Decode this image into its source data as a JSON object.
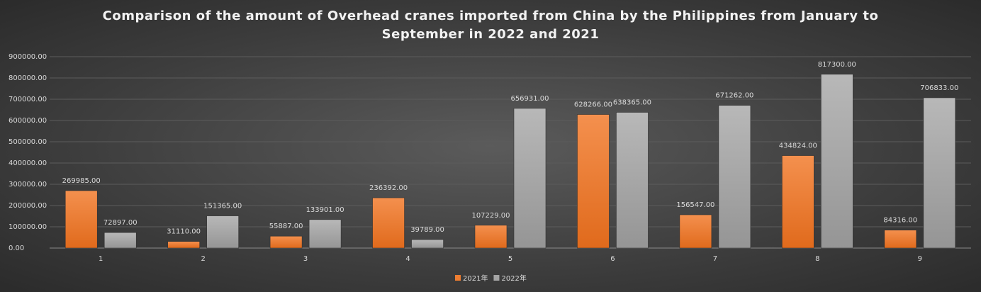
{
  "chart_data": {
    "type": "bar",
    "title": "Comparison of the amount of Overhead cranes imported from China by the Philippines from January to September in 2022 and 2021",
    "categories": [
      "1",
      "2",
      "3",
      "4",
      "5",
      "6",
      "7",
      "8",
      "9"
    ],
    "series": [
      {
        "name": "2021年",
        "color": "#ed7d31",
        "values": [
          269985,
          31110,
          55887,
          236392,
          107229,
          628266,
          156547,
          434824,
          84316
        ],
        "value_labels": [
          "269985.00",
          "31110.00",
          "55887.00",
          "236392.00",
          "107229.00",
          "628266.00",
          "156547.00",
          "434824.00",
          "84316.00"
        ]
      },
      {
        "name": "2022年",
        "color": "#a5a5a5",
        "values": [
          72897,
          151365,
          133901,
          39789,
          656931,
          638365,
          671262,
          817300,
          706833
        ],
        "value_labels": [
          "72897.00",
          "151365.00",
          "133901.00",
          "39789.00",
          "656931.00",
          "638365.00",
          "671262.00",
          "817300.00",
          "706833.00"
        ]
      }
    ],
    "ylim": [
      0,
      900000
    ],
    "yticks": [
      {
        "value": 0,
        "label": "0.00"
      },
      {
        "value": 100000,
        "label": "100000.00"
      },
      {
        "value": 200000,
        "label": "200000.00"
      },
      {
        "value": 300000,
        "label": "300000.00"
      },
      {
        "value": 400000,
        "label": "400000.00"
      },
      {
        "value": 500000,
        "label": "500000.00"
      },
      {
        "value": 600000,
        "label": "600000.00"
      },
      {
        "value": 700000,
        "label": "700000.00"
      },
      {
        "value": 800000,
        "label": "800000.00"
      },
      {
        "value": 900000,
        "label": "900000.00"
      }
    ],
    "grid": true,
    "legend": "bottom"
  }
}
